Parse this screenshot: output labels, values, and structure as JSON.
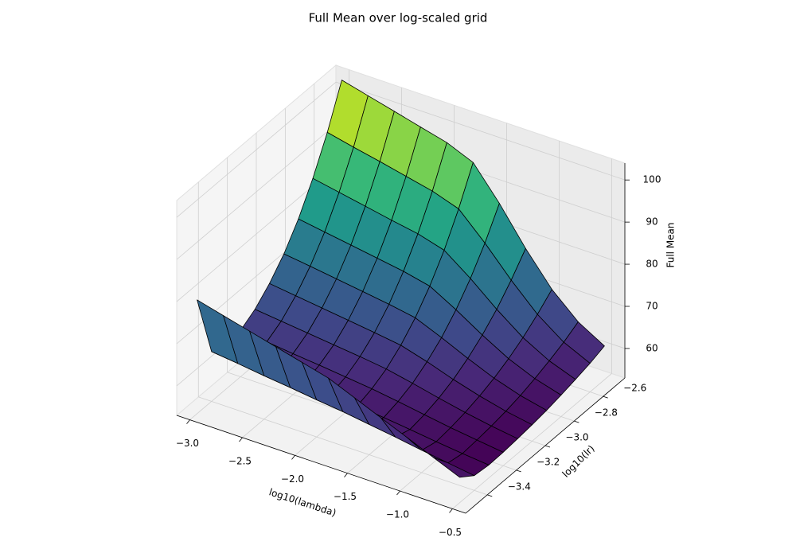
{
  "chart_data": {
    "type": "surface",
    "title": "Full Mean over log-scaled grid",
    "xlabel": "log10(lambda)",
    "ylabel": "log10(lr)",
    "zlabel": "Full Mean",
    "colormap": "viridis",
    "edgecolor": "#000000",
    "grid": true,
    "x": [
      -3,
      -2.75,
      -2.5,
      -2.25,
      -2,
      -1.75,
      -1.5,
      -1.25,
      -1,
      -0.75,
      -0.5
    ],
    "y": [
      -3.5,
      -3.4,
      -3.3,
      -3.2,
      -3.1,
      -3.0,
      -2.9,
      -2.8,
      -2.7,
      -2.6,
      -2.5
    ],
    "z": [
      [
        80,
        78.4,
        76.8,
        75.2,
        73.6,
        72,
        69.4,
        66.8,
        64.2,
        61.6,
        59
      ],
      [
        64.8,
        64.1,
        63.3,
        62.6,
        61.8,
        61.1,
        60.2,
        59.3,
        58.3,
        57.4,
        56.5
      ],
      [
        62.7,
        62.1,
        61.5,
        60.9,
        60.3,
        59.6,
        58.9,
        58.2,
        57.4,
        56.7,
        56.1
      ],
      [
        64.0,
        63.4,
        62.7,
        62.1,
        61.4,
        60.7,
        59.8,
        58.8,
        57.8,
        57.0,
        56.2
      ],
      [
        66.1,
        65.4,
        64.7,
        64.0,
        63.3,
        62.5,
        61.2,
        59.8,
        58.5,
        57.4,
        56.5
      ],
      [
        69.3,
        68.5,
        67.7,
        66.9,
        66.1,
        65.2,
        63.4,
        61.3,
        59.5,
        58.0,
        56.9
      ],
      [
        73.4,
        72.6,
        71.7,
        70.8,
        69.9,
        68.8,
        66.2,
        63.4,
        60.8,
        58.8,
        57.4
      ],
      [
        78.8,
        77.8,
        76.8,
        75.8,
        74.8,
        73.4,
        69.9,
        66.0,
        62.5,
        59.9,
        58.1
      ],
      [
        85.5,
        84.3,
        83.1,
        81.9,
        80.8,
        79.0,
        74.4,
        69.2,
        64.6,
        61.2,
        58.9
      ],
      [
        93.5,
        92.1,
        90.8,
        89.4,
        88.0,
        85.9,
        79.9,
        73.2,
        67.2,
        62.7,
        59.8
      ],
      [
        103,
        101.4,
        99.8,
        98.2,
        96.6,
        94,
        86.4,
        77.8,
        70.2,
        64.6,
        61
      ]
    ],
    "xlim": [
      -3.125,
      -0.375
    ],
    "ylim": [
      -3.55,
      -2.45
    ],
    "zlim": [
      53,
      104
    ],
    "xticks": [
      {
        "value": -3,
        "label": "−3.0"
      },
      {
        "value": -2.5,
        "label": "−2.5"
      },
      {
        "value": -2,
        "label": "−2.0"
      },
      {
        "value": -1.5,
        "label": "−1.5"
      },
      {
        "value": -1,
        "label": "−1.0"
      },
      {
        "value": -0.5,
        "label": "−0.5"
      }
    ],
    "yticks": [
      {
        "value": -3.4,
        "label": "−3.4"
      },
      {
        "value": -3.2,
        "label": "−3.2"
      },
      {
        "value": -3,
        "label": "−3.0"
      },
      {
        "value": -2.8,
        "label": "−2.8"
      },
      {
        "value": -2.6,
        "label": "−2.6"
      }
    ],
    "zticks": [
      60,
      70,
      80,
      90,
      100
    ]
  }
}
